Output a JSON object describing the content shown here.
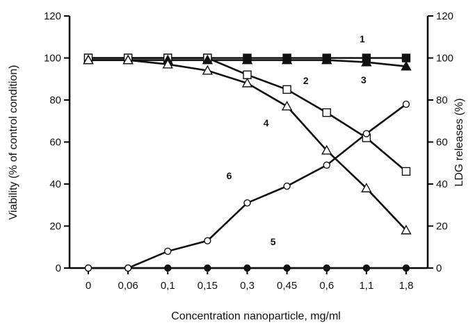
{
  "chart_data": {
    "type": "line",
    "xlabel": "Concentration nanoparticle, mg/ml",
    "ylabel_left": "Viability (% of control condition)",
    "ylabel_right": "LDG releases (%)",
    "categories": [
      "0",
      "0,06",
      "0,1",
      "0,15",
      "0,3",
      "0,45",
      "0,6",
      "1,1",
      "1,8"
    ],
    "ylim": [
      0,
      120
    ],
    "y_ticks": [
      "0",
      "20",
      "40",
      "60",
      "80",
      "100",
      "120"
    ],
    "grid": false,
    "series": [
      {
        "name": "1",
        "marker": "filled-square",
        "values": [
          100,
          100,
          100,
          100,
          100,
          100,
          100,
          100,
          100
        ]
      },
      {
        "name": "2",
        "marker": "open-square",
        "values": [
          100,
          100,
          100,
          100,
          92,
          85,
          74,
          62,
          46
        ]
      },
      {
        "name": "3",
        "marker": "filled-triangle",
        "values": [
          99,
          99,
          99,
          99,
          99,
          99,
          99,
          98,
          96
        ]
      },
      {
        "name": "4",
        "marker": "open-triangle",
        "values": [
          99,
          99,
          97,
          94,
          88,
          77,
          56,
          38,
          18
        ]
      },
      {
        "name": "5",
        "marker": "filled-circle",
        "values": [
          0,
          0,
          0,
          0,
          0,
          0,
          0,
          0,
          0
        ]
      },
      {
        "name": "6",
        "marker": "open-circle",
        "values": [
          0,
          0,
          8,
          13,
          31,
          39,
          49,
          64,
          78
        ]
      }
    ]
  }
}
